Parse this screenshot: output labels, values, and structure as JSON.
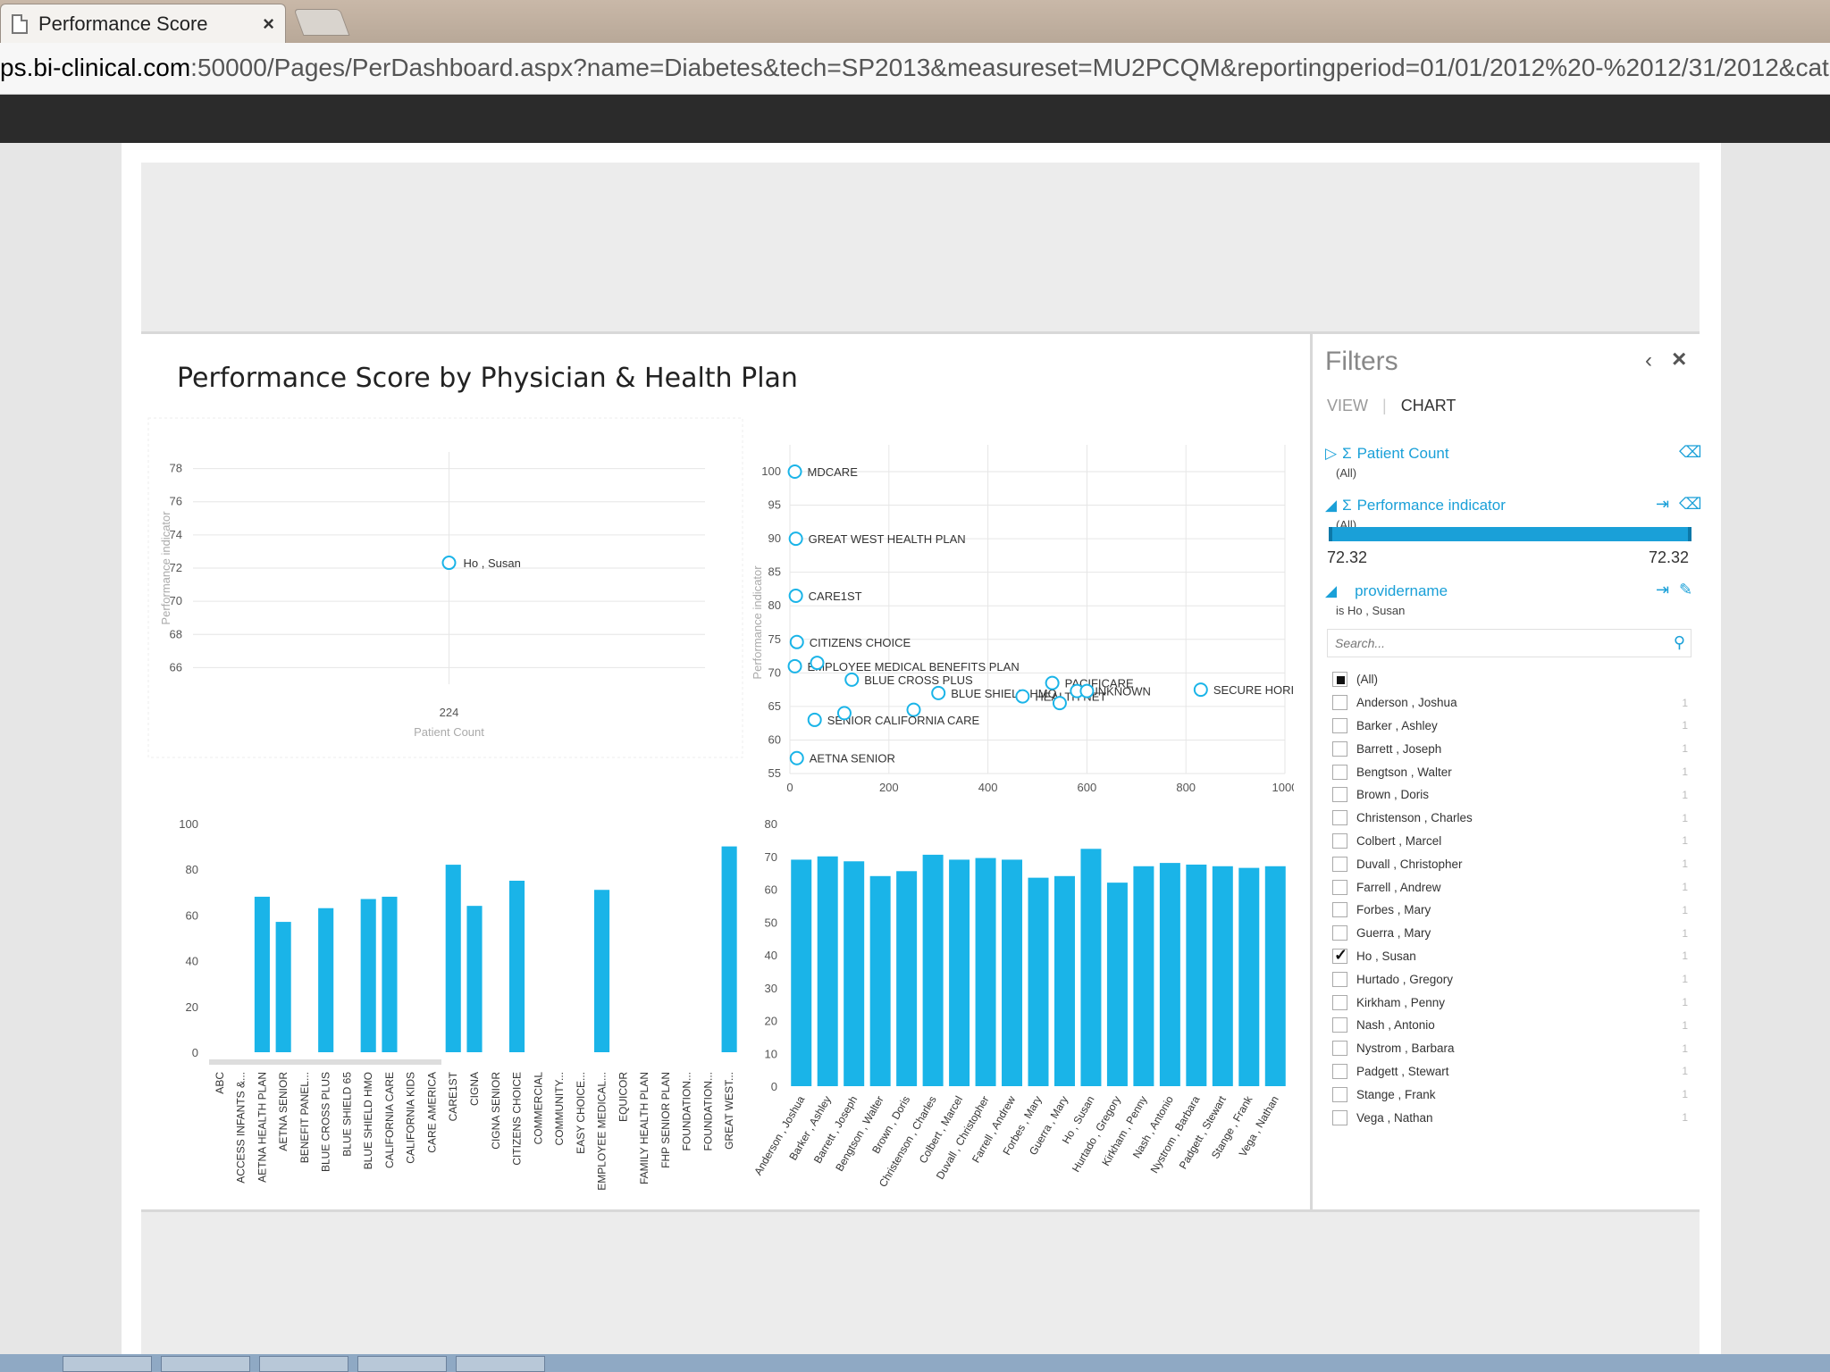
{
  "browser": {
    "tab_title": "Performance Score",
    "tab_close": "×",
    "url_host": "ps.bi-clinical.com",
    "url_path": ":50000/Pages/PerDashboard.aspx?name=Diabetes&tech=SP2013&measureset=MU2PCQM&reportingperiod=01/01/2012%20-%2012/31/2012&cat"
  },
  "report": {
    "title": "Performance Score by Physician & Health Plan"
  },
  "filters": {
    "title": "Filters",
    "collapse": "‹",
    "close": "×",
    "tab_view": "VIEW",
    "tab_sep": "|",
    "tab_chart": "CHART",
    "patient_count": {
      "label": "Patient Count",
      "value": "(All)"
    },
    "performance_indicator": {
      "label": "Performance indicator",
      "value": "(All)",
      "min": "72.32",
      "max": "72.32"
    },
    "providername": {
      "label": "providername",
      "value": "is Ho , Susan"
    },
    "search_placeholder": "Search...",
    "items": [
      {
        "name": "(All)",
        "state": "partial",
        "count": ""
      },
      {
        "name": "Anderson , Joshua",
        "state": "unchecked",
        "count": "1"
      },
      {
        "name": "Barker , Ashley",
        "state": "unchecked",
        "count": "1"
      },
      {
        "name": "Barrett , Joseph",
        "state": "unchecked",
        "count": "1"
      },
      {
        "name": "Bengtson , Walter",
        "state": "unchecked",
        "count": "1"
      },
      {
        "name": "Brown , Doris",
        "state": "unchecked",
        "count": "1"
      },
      {
        "name": "Christenson , Charles",
        "state": "unchecked",
        "count": "1"
      },
      {
        "name": "Colbert , Marcel",
        "state": "unchecked",
        "count": "1"
      },
      {
        "name": "Duvall , Christopher",
        "state": "unchecked",
        "count": "1"
      },
      {
        "name": "Farrell , Andrew",
        "state": "unchecked",
        "count": "1"
      },
      {
        "name": "Forbes , Mary",
        "state": "unchecked",
        "count": "1"
      },
      {
        "name": "Guerra , Mary",
        "state": "unchecked",
        "count": "1"
      },
      {
        "name": "Ho , Susan",
        "state": "checked",
        "count": "1"
      },
      {
        "name": "Hurtado , Gregory",
        "state": "unchecked",
        "count": "1"
      },
      {
        "name": "Kirkham , Penny",
        "state": "unchecked",
        "count": "1"
      },
      {
        "name": "Nash , Antonio",
        "state": "unchecked",
        "count": "1"
      },
      {
        "name": "Nystrom , Barbara",
        "state": "unchecked",
        "count": "1"
      },
      {
        "name": "Padgett , Stewart",
        "state": "unchecked",
        "count": "1"
      },
      {
        "name": "Stange , Frank",
        "state": "unchecked",
        "count": "1"
      },
      {
        "name": "Vega , Nathan",
        "state": "unchecked",
        "count": "1"
      }
    ]
  },
  "colors": {
    "accent": "#1ab4e8",
    "grid": "#e6e6e6",
    "axis_text": "#555555"
  },
  "chart_data": [
    {
      "type": "scatter",
      "title": "",
      "xlabel": "Patient Count",
      "ylabel": "Performance indicator",
      "xticks": [
        "224"
      ],
      "ylim": [
        65,
        79
      ],
      "yticks": [
        66,
        68,
        70,
        72,
        74,
        76,
        78
      ],
      "points": [
        {
          "label": "Ho , Susan",
          "x": 224,
          "y": 72.32
        }
      ]
    },
    {
      "type": "scatter",
      "title": "",
      "xlabel": "Patient Count",
      "ylabel": "Performance indicator",
      "xlim": [
        0,
        1000
      ],
      "xticks": [
        0,
        200,
        400,
        600,
        800,
        1000
      ],
      "ylim": [
        55,
        100
      ],
      "yticks": [
        55,
        60,
        65,
        70,
        75,
        80,
        85,
        90,
        95,
        100
      ],
      "points": [
        {
          "label": "MDCARE",
          "x": 10,
          "y": 100
        },
        {
          "label": "GREAT WEST HEALTH PLAN",
          "x": 12,
          "y": 90
        },
        {
          "label": "CARE1ST",
          "x": 12,
          "y": 81.5
        },
        {
          "label": "CITIZENS CHOICE",
          "x": 14,
          "y": 74.6
        },
        {
          "label": "EMPLOYEE MEDICAL BENEFITS PLAN",
          "x": 10,
          "y": 71
        },
        {
          "label": "",
          "x": 55,
          "y": 71.5
        },
        {
          "label": "BLUE CROSS PLUS",
          "x": 125,
          "y": 69
        },
        {
          "label": "BLUE SHIELD HMO",
          "x": 300,
          "y": 67
        },
        {
          "label": "",
          "x": 250,
          "y": 64.5
        },
        {
          "label": "SENIOR CALIFORNIA CARE",
          "x": 50,
          "y": 63
        },
        {
          "label": "",
          "x": 110,
          "y": 64
        },
        {
          "label": "HEALTH NET",
          "x": 470,
          "y": 66.5
        },
        {
          "label": "PACIFICARE",
          "x": 530,
          "y": 68.5
        },
        {
          "label": "UNKNOWN",
          "x": 580,
          "y": 67.3
        },
        {
          "label": "",
          "x": 545,
          "y": 65.5
        },
        {
          "label": "",
          "x": 600,
          "y": 67.3
        },
        {
          "label": "SECURE HORIZONS",
          "x": 830,
          "y": 67.5
        },
        {
          "label": "AETNA SENIOR",
          "x": 14,
          "y": 57.3
        }
      ]
    },
    {
      "type": "bar",
      "ylim": [
        0,
        100
      ],
      "yticks": [
        0,
        20,
        40,
        60,
        80,
        100
      ],
      "categories": [
        "ABC",
        "ACCESS INFANTS &...",
        "AETNA HEALTH PLAN",
        "AETNA SENIOR",
        "BENEFIT PANEL...",
        "BLUE CROSS PLUS",
        "BLUE SHIELD 65",
        "BLUE SHIELD HMO",
        "CALIFORNIA CARE",
        "CALIFORNIA KIDS",
        "CARE AMERICA",
        "CARE1ST",
        "CIGNA",
        "CIGNA SENIOR",
        "CITIZENS CHOICE",
        "COMMERCIAL",
        "COMMUNITY...",
        "EASY CHOICE...",
        "EMPLOYEE MEDICAL...",
        "EQUICOR",
        "FAMILY HEALTH PLAN",
        "FHP SENIOR PLAN",
        "FOUNDATION...",
        "FOUNDATION...",
        "GREAT WEST..."
      ],
      "values": [
        0,
        0,
        68,
        57,
        0,
        63,
        0,
        67,
        68,
        0,
        0,
        82,
        64,
        0,
        75,
        0,
        0,
        0,
        71,
        0,
        0,
        0,
        0,
        0,
        90
      ]
    },
    {
      "type": "bar",
      "ylim": [
        0,
        80
      ],
      "yticks": [
        0,
        10,
        20,
        30,
        40,
        50,
        60,
        70,
        80
      ],
      "categories": [
        "Anderson , Joshua",
        "Barker , Ashley",
        "Barrett , Joseph",
        "Bengtson , Walter",
        "Brown , Doris",
        "Christenson , Charles",
        "Colbert , Marcel",
        "Duvall , Christopher",
        "Farrell , Andrew",
        "Forbes , Mary",
        "Guerra , Mary",
        "Ho , Susan",
        "Hurtado , Gregory",
        "Kirkham , Penny",
        "Nash , Antonio",
        "Nystrom , Barbara",
        "Padgett , Stewart",
        "Stange , Frank",
        "Vega , Nathan"
      ],
      "values": [
        69,
        70,
        68.5,
        64,
        65.5,
        70.5,
        69,
        69.5,
        69,
        63.5,
        64,
        72.3,
        62,
        67,
        68,
        67.5,
        67,
        66.5,
        67
      ]
    }
  ]
}
